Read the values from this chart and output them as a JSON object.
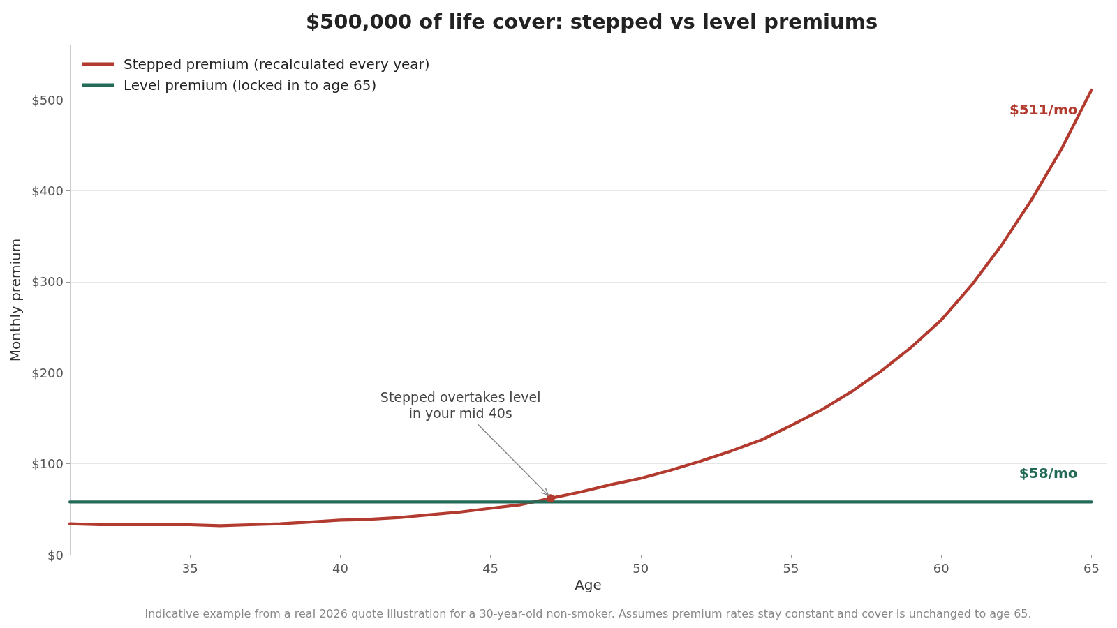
{
  "chart_data": {
    "type": "line",
    "title": "$500,000 of life cover: stepped vs level premiums",
    "xlabel": "Age",
    "ylabel": "Monthly premium",
    "x": [
      31,
      32,
      33,
      34,
      35,
      36,
      37,
      38,
      39,
      40,
      41,
      42,
      43,
      44,
      45,
      46,
      47,
      48,
      49,
      50,
      51,
      52,
      53,
      54,
      55,
      56,
      57,
      58,
      59,
      60,
      61,
      62,
      63,
      64,
      65
    ],
    "series": [
      {
        "name": "Stepped premium (recalculated every year)",
        "color": "#b23a2e",
        "values": [
          34,
          33,
          33,
          33,
          33,
          32,
          33,
          34,
          36,
          38,
          39,
          41,
          44,
          47,
          51,
          55,
          62,
          69,
          77,
          84,
          93,
          103,
          114,
          126,
          142,
          159,
          179,
          202,
          228,
          258,
          296,
          340,
          390,
          446,
          511
        ],
        "value_labels": [
          null,
          null,
          null,
          null,
          null,
          null,
          null,
          null,
          null,
          null,
          null,
          null,
          null,
          null,
          null,
          null,
          null,
          null,
          null,
          null,
          null,
          null,
          null,
          null,
          null,
          null,
          null,
          null,
          null,
          null,
          null,
          null,
          null,
          null,
          "$511/mo"
        ]
      },
      {
        "name": "Level premium (locked in to age 65)",
        "color": "#236b58",
        "values": [
          58,
          58,
          58,
          58,
          58,
          58,
          58,
          58,
          58,
          58,
          58,
          58,
          58,
          58,
          58,
          58,
          58,
          58,
          58,
          58,
          58,
          58,
          58,
          58,
          58,
          58,
          58,
          58,
          58,
          58,
          58,
          58,
          58,
          58,
          58
        ],
        "value_labels": [
          null,
          null,
          null,
          null,
          null,
          null,
          null,
          null,
          null,
          null,
          null,
          null,
          null,
          null,
          null,
          null,
          null,
          null,
          null,
          null,
          null,
          null,
          null,
          null,
          null,
          null,
          null,
          null,
          null,
          null,
          null,
          null,
          null,
          null,
          "$58/mo"
        ]
      },
      {
        "type": "scatter",
        "color": "#b23a2e",
        "marker": "circle",
        "x": [
          47
        ],
        "values": [
          62
        ]
      }
    ],
    "xlim": [
      31,
      65.5
    ],
    "xticks": [
      35,
      40,
      45,
      50,
      55,
      60,
      65
    ],
    "ylim": [
      0,
      560
    ],
    "yticks": [
      {
        "value": 0,
        "label": "$0"
      },
      {
        "value": 100,
        "label": "$100"
      },
      {
        "value": 200,
        "label": "$200"
      },
      {
        "value": 300,
        "label": "$300"
      },
      {
        "value": 400,
        "label": "$400"
      },
      {
        "value": 500,
        "label": "$500"
      }
    ],
    "grid": "y",
    "legend": "top left",
    "marker": "none",
    "line_style": "solid",
    "annotations": [
      {
        "text": "Stepped overtakes level\nin your mid 40s",
        "x": 47,
        "y": 62
      },
      "Indicative example from a real 2026 quote illustration for a 30-year-old non-smoker. Assumes premium rates stay constant and cover is unchanged to age 65."
    ]
  }
}
